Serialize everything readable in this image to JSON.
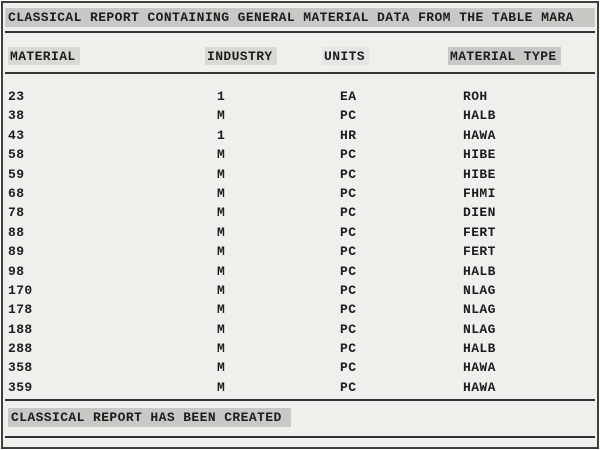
{
  "report": {
    "title": "CLASSICAL REPORT CONTAINING GENERAL MATERIAL DATA FROM THE TABLE MARA",
    "footer": "CLASSICAL REPORT HAS BEEN CREATED",
    "columns": [
      {
        "label": "MATERIAL",
        "highlight": "medium"
      },
      {
        "label": "INDUSTRY",
        "highlight": "medium"
      },
      {
        "label": "UNITS",
        "highlight": "light"
      },
      {
        "label": "MATERIAL TYPE",
        "highlight": "dark"
      }
    ],
    "rows": [
      {
        "material": "23",
        "industry": "1",
        "units": "EA",
        "material_type": "ROH"
      },
      {
        "material": "38",
        "industry": "M",
        "units": "PC",
        "material_type": "HALB"
      },
      {
        "material": "43",
        "industry": "1",
        "units": "HR",
        "material_type": "HAWA"
      },
      {
        "material": "58",
        "industry": "M",
        "units": "PC",
        "material_type": "HIBE"
      },
      {
        "material": "59",
        "industry": "M",
        "units": "PC",
        "material_type": "HIBE"
      },
      {
        "material": "68",
        "industry": "M",
        "units": "PC",
        "material_type": "FHMI"
      },
      {
        "material": "78",
        "industry": "M",
        "units": "PC",
        "material_type": "DIEN"
      },
      {
        "material": "88",
        "industry": "M",
        "units": "PC",
        "material_type": "FERT"
      },
      {
        "material": "89",
        "industry": "M",
        "units": "PC",
        "material_type": "FERT"
      },
      {
        "material": "98",
        "industry": "M",
        "units": "PC",
        "material_type": "HALB"
      },
      {
        "material": "170",
        "industry": "M",
        "units": "PC",
        "material_type": "NLAG"
      },
      {
        "material": "178",
        "industry": "M",
        "units": "PC",
        "material_type": "NLAG"
      },
      {
        "material": "188",
        "industry": "M",
        "units": "PC",
        "material_type": "NLAG"
      },
      {
        "material": "288",
        "industry": "M",
        "units": "PC",
        "material_type": "HALB"
      },
      {
        "material": "358",
        "industry": "M",
        "units": "PC",
        "material_type": "HAWA"
      },
      {
        "material": "359",
        "industry": "M",
        "units": "PC",
        "material_type": "HAWA"
      }
    ]
  },
  "colors": {
    "page_bg": "#f0efec",
    "highlight_dark": "#c9c8c4",
    "highlight_medium": "#d9d8d3",
    "highlight_light": "#e6e5e1",
    "text": "#1d1d1d",
    "rule": "#333333",
    "border": "#3f3f3f"
  }
}
